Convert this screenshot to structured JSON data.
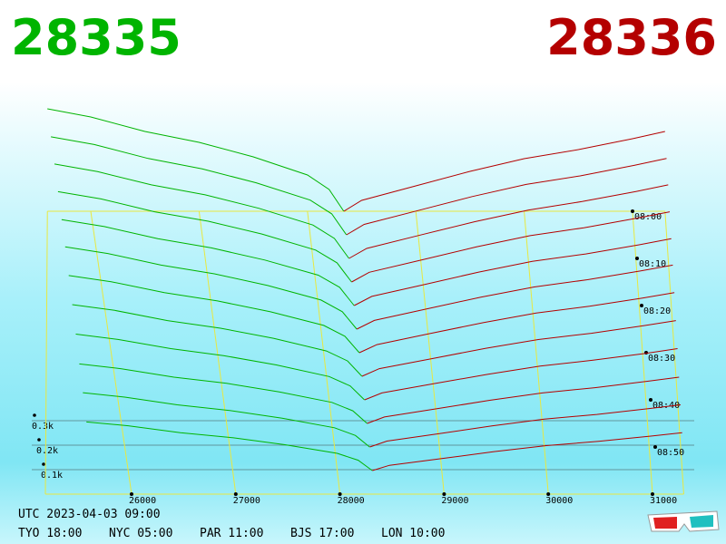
{
  "chart_data": {
    "type": "depth3d",
    "best_bid": 28335,
    "best_ask": 28336,
    "bid_color": "#00b400",
    "ask_color": "#b40000",
    "grid_color": "#e8e840",
    "xlim": [
      25600,
      31300
    ],
    "xticks": [
      26000,
      27000,
      28000,
      29000,
      30000,
      31000
    ],
    "tlim": [
      0,
      60
    ],
    "tticks": [
      {
        "value": 0,
        "label": "08:00"
      },
      {
        "value": 10,
        "label": "08:10"
      },
      {
        "value": 20,
        "label": "08:20"
      },
      {
        "value": 30,
        "label": "08:30"
      },
      {
        "value": 40,
        "label": "08:40"
      },
      {
        "value": 50,
        "label": "08:50"
      }
    ],
    "zticks": [
      {
        "value": 100,
        "label": "0.1k"
      },
      {
        "value": 200,
        "label": "0.2k"
      },
      {
        "value": 300,
        "label": "0.3k"
      }
    ],
    "bid_prices": [
      28335,
      28200,
      28000,
      27500,
      27000,
      26500,
      26000,
      25600
    ],
    "ask_prices": [
      28336,
      28500,
      29000,
      29500,
      30000,
      30500,
      31000,
      31300
    ],
    "snapshots": [
      {
        "t": 0,
        "bids": [
          0,
          120,
          200,
          300,
          380,
          440,
          520,
          565
        ],
        "asks": [
          0,
          60,
          140,
          220,
          290,
          340,
          400,
          440
        ]
      },
      {
        "t": 5,
        "bids": [
          0,
          112,
          186,
          279,
          353,
          409,
          484,
          525
        ],
        "asks": [
          0,
          56,
          130,
          205,
          270,
          316,
          372,
          409
        ]
      },
      {
        "t": 10,
        "bids": [
          0,
          104,
          174,
          261,
          331,
          383,
          452,
          492
        ],
        "asks": [
          0,
          52,
          122,
          191,
          252,
          296,
          348,
          383
        ]
      },
      {
        "t": 15,
        "bids": [
          0,
          97,
          162,
          243,
          308,
          356,
          421,
          458
        ],
        "asks": [
          0,
          49,
          113,
          178,
          235,
          275,
          324,
          356
        ]
      },
      {
        "t": 20,
        "bids": [
          0,
          90,
          150,
          225,
          285,
          330,
          390,
          424
        ],
        "asks": [
          0,
          45,
          105,
          165,
          218,
          255,
          300,
          330
        ]
      },
      {
        "t": 25,
        "bids": [
          0,
          84,
          140,
          210,
          266,
          308,
          364,
          396
        ],
        "asks": [
          0,
          42,
          98,
          154,
          203,
          238,
          280,
          308
        ]
      },
      {
        "t": 30,
        "bids": [
          0,
          77,
          128,
          192,
          243,
          282,
          333,
          362
        ],
        "asks": [
          0,
          38,
          90,
          141,
          186,
          218,
          256,
          282
        ]
      },
      {
        "t": 35,
        "bids": [
          0,
          70,
          116,
          174,
          220,
          255,
          302,
          328
        ],
        "asks": [
          0,
          35,
          81,
          128,
          168,
          197,
          232,
          255
        ]
      },
      {
        "t": 40,
        "bids": [
          0,
          62,
          104,
          156,
          198,
          229,
          270,
          294
        ],
        "asks": [
          0,
          31,
          73,
          114,
          151,
          177,
          208,
          229
        ]
      },
      {
        "t": 45,
        "bids": [
          0,
          55,
          92,
          138,
          175,
          202,
          239,
          260
        ],
        "asks": [
          0,
          28,
          64,
          101,
          133,
          156,
          184,
          202
        ]
      },
      {
        "t": 50,
        "bids": [
          0,
          49,
          82,
          123,
          156,
          180,
          213,
          232
        ],
        "asks": [
          0,
          25,
          57,
          90,
          119,
          139,
          164,
          180
        ]
      },
      {
        "t": 55,
        "bids": [
          0,
          43,
          72,
          108,
          137,
          158,
          187,
          203
        ],
        "asks": [
          0,
          22,
          50,
          79,
          104,
          122,
          144,
          158
        ]
      }
    ],
    "clock_utc": "UTC 2023-04-03 09:00",
    "clocks": [
      "TYO 18:00",
      "NYC 05:00",
      "PAR 11:00",
      "BJS 17:00",
      "LON 10:00"
    ]
  }
}
